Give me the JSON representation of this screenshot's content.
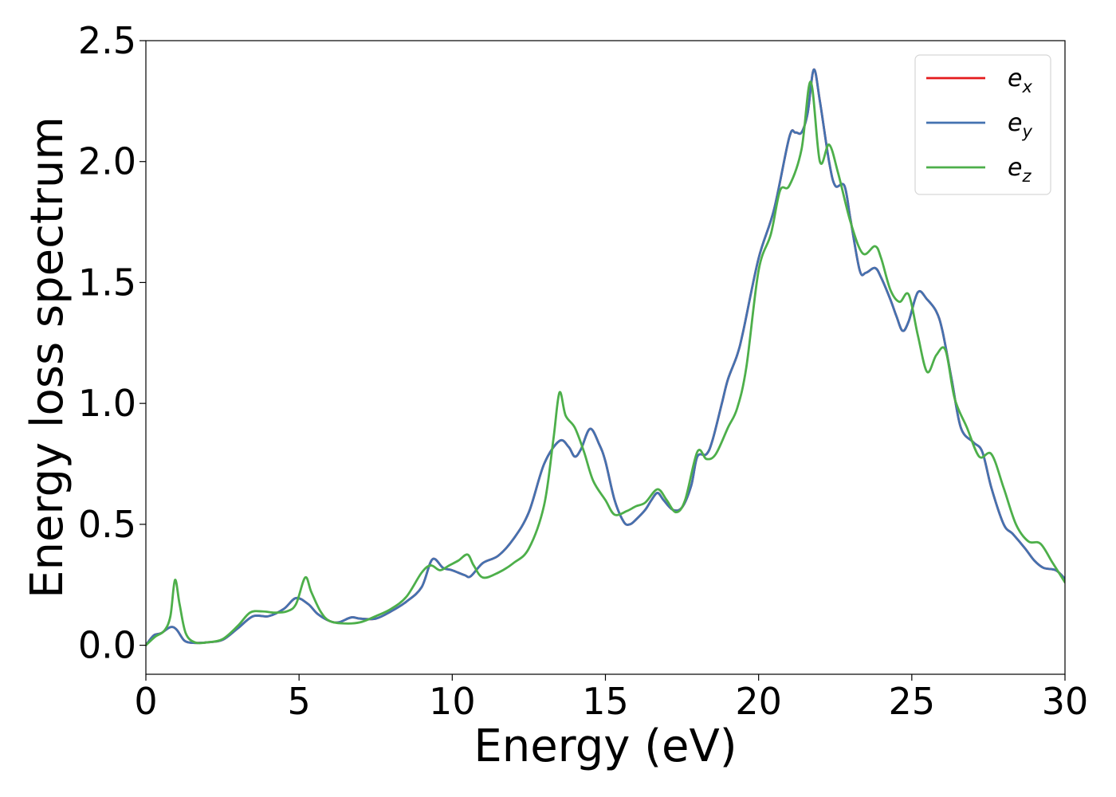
{
  "chart_data": {
    "type": "line",
    "title": "",
    "xlabel": "Energy (eV)",
    "ylabel": "Energy loss spectrum",
    "xlim": [
      0,
      30
    ],
    "ylim": [
      -0.12,
      2.5
    ],
    "xticks": [
      0,
      5,
      10,
      15,
      20,
      25,
      30
    ],
    "xtick_labels": [
      "0",
      "5",
      "10",
      "15",
      "20",
      "25",
      "30"
    ],
    "yticks": [
      0.0,
      0.5,
      1.0,
      1.5,
      2.0,
      2.5
    ],
    "ytick_labels": [
      "0.0",
      "0.5",
      "1.0",
      "1.5",
      "2.0",
      "2.5"
    ],
    "grid": false,
    "legend_position": "top-right",
    "series": [
      {
        "name": "e_x",
        "label_base": "e",
        "label_sub": "x",
        "color": "#e41a1c",
        "x": [
          0,
          0.25,
          0.5,
          0.8,
          1.0,
          1.25,
          1.5,
          1.8,
          2.0,
          2.5,
          3.0,
          3.5,
          4.0,
          4.5,
          4.9,
          5.3,
          5.6,
          6.0,
          6.3,
          6.7,
          7.0,
          7.5,
          8.0,
          8.5,
          9.0,
          9.35,
          9.7,
          10.0,
          10.4,
          10.6,
          11.0,
          11.5,
          12.0,
          12.5,
          13.0,
          13.5,
          13.8,
          14.0,
          14.2,
          14.5,
          14.8,
          15.0,
          15.3,
          15.6,
          15.8,
          16.0,
          16.3,
          16.5,
          16.7,
          16.9,
          17.2,
          17.5,
          17.8,
          18.0,
          18.3,
          18.5,
          18.8,
          19.0,
          19.3,
          19.5,
          20.0,
          20.5,
          21.0,
          21.2,
          21.4,
          21.6,
          21.8,
          22.0,
          22.3,
          22.5,
          22.8,
          23.0,
          23.3,
          23.5,
          23.8,
          24.0,
          24.3,
          24.5,
          24.7,
          24.9,
          25.2,
          25.5,
          25.8,
          26.0,
          26.3,
          26.6,
          27.0,
          27.3,
          27.6,
          28.0,
          28.3,
          28.7,
          29.0,
          29.3,
          29.7,
          30.0
        ],
        "y": [
          0.0,
          0.04,
          0.05,
          0.075,
          0.065,
          0.02,
          0.01,
          0.01,
          0.012,
          0.022,
          0.07,
          0.12,
          0.12,
          0.15,
          0.195,
          0.17,
          0.13,
          0.1,
          0.095,
          0.115,
          0.11,
          0.11,
          0.14,
          0.18,
          0.24,
          0.355,
          0.32,
          0.31,
          0.29,
          0.285,
          0.34,
          0.37,
          0.44,
          0.55,
          0.75,
          0.845,
          0.82,
          0.78,
          0.81,
          0.895,
          0.83,
          0.76,
          0.6,
          0.51,
          0.5,
          0.52,
          0.56,
          0.6,
          0.63,
          0.6,
          0.56,
          0.57,
          0.66,
          0.78,
          0.79,
          0.85,
          1.0,
          1.1,
          1.2,
          1.3,
          1.6,
          1.8,
          2.1,
          2.12,
          2.12,
          2.2,
          2.38,
          2.25,
          2.0,
          1.9,
          1.9,
          1.76,
          1.55,
          1.54,
          1.56,
          1.52,
          1.43,
          1.36,
          1.3,
          1.34,
          1.46,
          1.43,
          1.38,
          1.3,
          1.1,
          0.9,
          0.84,
          0.8,
          0.65,
          0.5,
          0.46,
          0.4,
          0.35,
          0.32,
          0.31,
          0.275
        ]
      },
      {
        "name": "e_y",
        "label_base": "e",
        "label_sub": "y",
        "color": "#4472b0",
        "x": [
          0,
          0.25,
          0.5,
          0.8,
          1.0,
          1.25,
          1.5,
          1.8,
          2.0,
          2.5,
          3.0,
          3.5,
          4.0,
          4.5,
          4.9,
          5.3,
          5.6,
          6.0,
          6.3,
          6.7,
          7.0,
          7.5,
          8.0,
          8.5,
          9.0,
          9.35,
          9.7,
          10.0,
          10.4,
          10.6,
          11.0,
          11.5,
          12.0,
          12.5,
          13.0,
          13.5,
          13.8,
          14.0,
          14.2,
          14.5,
          14.8,
          15.0,
          15.3,
          15.6,
          15.8,
          16.0,
          16.3,
          16.5,
          16.7,
          16.9,
          17.2,
          17.5,
          17.8,
          18.0,
          18.3,
          18.5,
          18.8,
          19.0,
          19.3,
          19.5,
          20.0,
          20.5,
          21.0,
          21.2,
          21.4,
          21.6,
          21.8,
          22.0,
          22.3,
          22.5,
          22.8,
          23.0,
          23.3,
          23.5,
          23.8,
          24.0,
          24.3,
          24.5,
          24.7,
          24.9,
          25.2,
          25.5,
          25.8,
          26.0,
          26.3,
          26.6,
          27.0,
          27.3,
          27.6,
          28.0,
          28.3,
          28.7,
          29.0,
          29.3,
          29.7,
          30.0
        ],
        "y": [
          0.0,
          0.04,
          0.05,
          0.075,
          0.065,
          0.02,
          0.01,
          0.01,
          0.012,
          0.022,
          0.07,
          0.12,
          0.12,
          0.15,
          0.195,
          0.17,
          0.13,
          0.1,
          0.095,
          0.115,
          0.11,
          0.11,
          0.14,
          0.18,
          0.24,
          0.355,
          0.32,
          0.31,
          0.29,
          0.285,
          0.34,
          0.37,
          0.44,
          0.55,
          0.75,
          0.845,
          0.82,
          0.78,
          0.81,
          0.895,
          0.83,
          0.76,
          0.6,
          0.51,
          0.5,
          0.52,
          0.56,
          0.6,
          0.63,
          0.6,
          0.56,
          0.57,
          0.66,
          0.78,
          0.79,
          0.85,
          1.0,
          1.1,
          1.2,
          1.3,
          1.6,
          1.8,
          2.1,
          2.12,
          2.12,
          2.2,
          2.38,
          2.25,
          2.0,
          1.9,
          1.9,
          1.76,
          1.55,
          1.54,
          1.56,
          1.52,
          1.43,
          1.36,
          1.3,
          1.34,
          1.46,
          1.43,
          1.38,
          1.3,
          1.1,
          0.9,
          0.84,
          0.8,
          0.65,
          0.5,
          0.46,
          0.4,
          0.35,
          0.32,
          0.31,
          0.275
        ]
      },
      {
        "name": "e_z",
        "label_base": "e",
        "label_sub": "z",
        "color": "#4daf4a",
        "x": [
          0,
          0.3,
          0.6,
          0.8,
          0.95,
          1.1,
          1.3,
          1.6,
          2.0,
          2.5,
          3.0,
          3.4,
          3.8,
          4.2,
          4.6,
          4.9,
          5.2,
          5.4,
          5.7,
          6.0,
          6.5,
          7.0,
          7.5,
          8.0,
          8.5,
          9.0,
          9.3,
          9.6,
          9.9,
          10.2,
          10.5,
          10.7,
          11.0,
          11.5,
          12.0,
          12.5,
          13.0,
          13.3,
          13.5,
          13.7,
          14.0,
          14.3,
          14.6,
          15.0,
          15.3,
          15.7,
          16.0,
          16.3,
          16.7,
          17.0,
          17.3,
          17.6,
          18.0,
          18.3,
          18.6,
          19.0,
          19.3,
          19.6,
          20.0,
          20.4,
          20.7,
          21.0,
          21.4,
          21.7,
          22.0,
          22.3,
          22.6,
          23.0,
          23.4,
          23.8,
          24.0,
          24.3,
          24.6,
          24.9,
          25.2,
          25.5,
          25.8,
          26.1,
          26.4,
          26.8,
          27.2,
          27.6,
          28.0,
          28.4,
          28.8,
          29.2,
          29.6,
          30.0
        ],
        "y": [
          0.0,
          0.035,
          0.06,
          0.12,
          0.27,
          0.17,
          0.05,
          0.012,
          0.012,
          0.025,
          0.08,
          0.135,
          0.14,
          0.135,
          0.14,
          0.17,
          0.28,
          0.22,
          0.14,
          0.1,
          0.09,
          0.095,
          0.12,
          0.15,
          0.2,
          0.3,
          0.33,
          0.31,
          0.33,
          0.35,
          0.375,
          0.33,
          0.28,
          0.3,
          0.34,
          0.4,
          0.58,
          0.85,
          1.045,
          0.95,
          0.9,
          0.8,
          0.68,
          0.6,
          0.54,
          0.555,
          0.575,
          0.59,
          0.645,
          0.6,
          0.55,
          0.6,
          0.8,
          0.77,
          0.79,
          0.9,
          0.98,
          1.15,
          1.55,
          1.7,
          1.88,
          1.9,
          2.05,
          2.33,
          2.0,
          2.07,
          1.95,
          1.75,
          1.62,
          1.65,
          1.6,
          1.47,
          1.42,
          1.45,
          1.28,
          1.13,
          1.2,
          1.22,
          1.02,
          0.9,
          0.78,
          0.79,
          0.65,
          0.5,
          0.43,
          0.42,
          0.34,
          0.26
        ]
      }
    ]
  }
}
